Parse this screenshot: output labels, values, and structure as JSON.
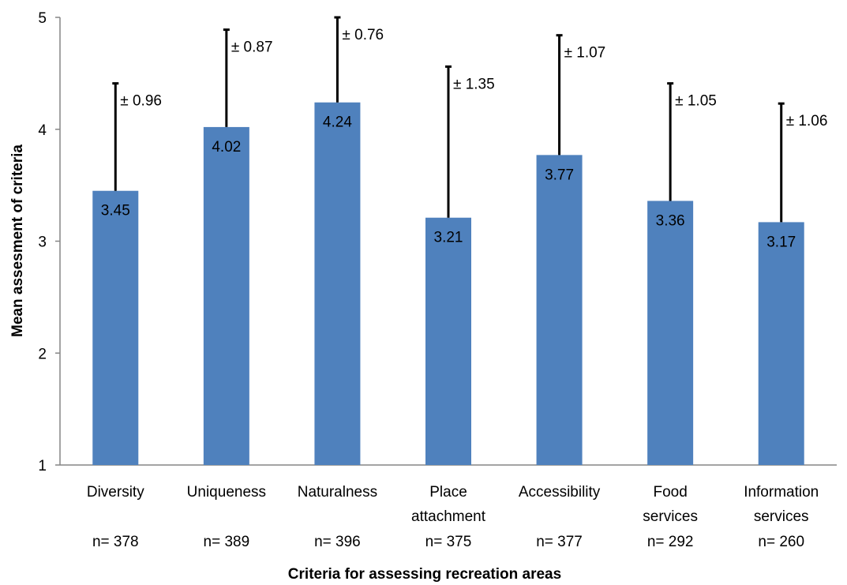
{
  "chart_data": {
    "type": "bar",
    "title": "",
    "xlabel": "Criteria for assessing recreation areas",
    "ylabel": "Mean assesment of criteria",
    "ylim": [
      1,
      5
    ],
    "yticks": [
      1,
      2,
      3,
      4,
      5
    ],
    "grid": false,
    "bar_color": "#4f81bd",
    "categories": [
      [
        "Diversity"
      ],
      [
        "Uniqueness"
      ],
      [
        "Naturalness"
      ],
      [
        "Place",
        "attachment"
      ],
      [
        "Accessibility"
      ],
      [
        "Food",
        "services"
      ],
      [
        "Information",
        "services"
      ]
    ],
    "values": [
      3.45,
      4.02,
      4.24,
      3.21,
      3.77,
      3.36,
      3.17
    ],
    "value_labels": [
      "3.45",
      "4.02",
      "4.24",
      "3.21",
      "3.77",
      "3.36",
      "3.17"
    ],
    "errors": [
      0.96,
      0.87,
      0.76,
      1.35,
      1.07,
      1.05,
      1.06
    ],
    "error_labels": [
      "± 0.96",
      "± 0.87",
      "± 0.76",
      "± 1.35",
      "± 1.07",
      "± 1.05",
      "± 1.06"
    ],
    "n_labels": [
      "n= 378",
      "n= 389",
      "n= 396",
      "n= 375",
      "n= 377",
      "n= 292",
      "n= 260"
    ]
  }
}
